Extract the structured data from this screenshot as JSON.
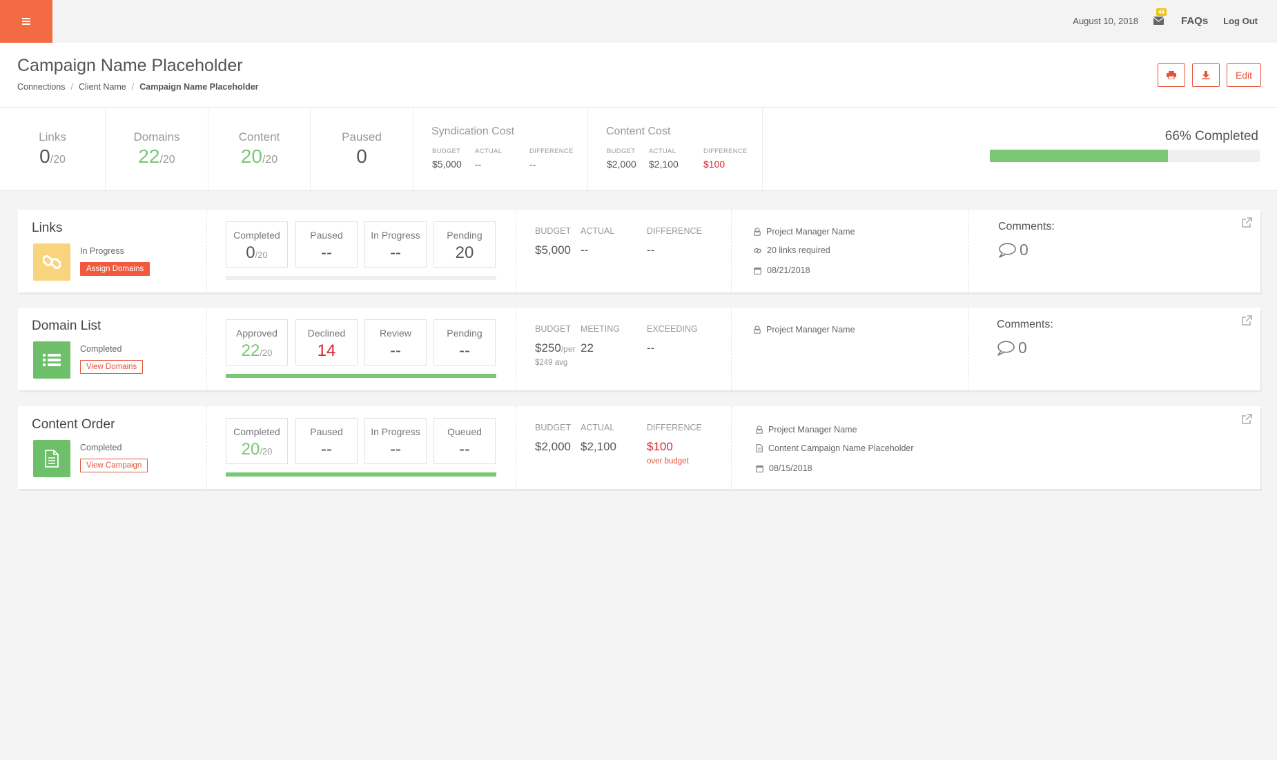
{
  "topbar": {
    "date": "August 10, 2018",
    "mail_badge": "44",
    "faqs_label": "FAQs",
    "logout_label": "Log Out",
    "accent": "#f26b43"
  },
  "header": {
    "title": "Campaign Name Placeholder",
    "breadcrumb": [
      "Connections",
      "Client Name",
      "Campaign Name Placeholder"
    ],
    "edit_label": "Edit",
    "print_icon": "print-icon",
    "download_icon": "download-icon"
  },
  "stats": {
    "links": {
      "label": "Links",
      "value": "0",
      "denom": "/20"
    },
    "domains": {
      "label": "Domains",
      "value": "22",
      "denom": "/20"
    },
    "content": {
      "label": "Content",
      "value": "20",
      "denom": "/20"
    },
    "paused": {
      "label": "Paused",
      "value": "0"
    },
    "syndication": {
      "title": "Syndication Cost",
      "cols": [
        {
          "label": "BUDGET",
          "value": "$5,000"
        },
        {
          "label": "ACTUAL",
          "value": "--"
        },
        {
          "label": "DIFFERENCE",
          "value": "--"
        }
      ]
    },
    "content_cost": {
      "title": "Content Cost",
      "cols": [
        {
          "label": "BUDGET",
          "value": "$2,000"
        },
        {
          "label": "ACTUAL",
          "value": "$2,100"
        },
        {
          "label": "DIFFERENCE",
          "value": "$100"
        }
      ]
    },
    "completion": {
      "label": "66% Completed",
      "percent": 66
    }
  },
  "cards": [
    {
      "name": "Links",
      "icon": "link-icon",
      "icon_color": "#f9d47e",
      "status": "In Progress",
      "action": "Assign Domains",
      "boxes": [
        {
          "label": "Completed",
          "value": "0",
          "denom": "/20"
        },
        {
          "label": "Paused",
          "value": "--"
        },
        {
          "label": "In Progress",
          "value": "--"
        },
        {
          "label": "Pending",
          "value": "20"
        }
      ],
      "progress": 0,
      "fin": [
        {
          "label": "BUDGET",
          "value": "$5,000"
        },
        {
          "label": "ACTUAL",
          "value": "--"
        },
        {
          "label": "DIFFERENCE",
          "value": "--"
        }
      ],
      "meta": [
        "Project Manager Name",
        "20 links required",
        "08/21/2018"
      ],
      "comments_label": "Comments:",
      "comments_count": "0"
    },
    {
      "name": "Domain List",
      "icon": "list-icon",
      "icon_color": "#6dbf69",
      "status": "Completed",
      "action": "View Domains",
      "boxes": [
        {
          "label": "Approved",
          "value": "22",
          "denom": "/20"
        },
        {
          "label": "Declined",
          "value": "14"
        },
        {
          "label": "Review",
          "value": "--"
        },
        {
          "label": "Pending",
          "value": "--"
        }
      ],
      "progress": 100,
      "fin": [
        {
          "label": "BUDGET",
          "value": "$250",
          "unit": "/per",
          "sub": "$249 avg"
        },
        {
          "label": "MEETING",
          "value": "22"
        },
        {
          "label": "EXCEEDING",
          "value": "--"
        }
      ],
      "meta": [
        "Project Manager Name"
      ],
      "comments_label": "Comments:",
      "comments_count": "0"
    },
    {
      "name": "Content Order",
      "icon": "document-icon",
      "icon_color": "#6dbf69",
      "status": "Completed",
      "action": "View Campaign",
      "boxes": [
        {
          "label": "Completed",
          "value": "20",
          "denom": "/20"
        },
        {
          "label": "Paused",
          "value": "--"
        },
        {
          "label": "In Progress",
          "value": "--"
        },
        {
          "label": "Queued",
          "value": "--"
        }
      ],
      "progress": 100,
      "fin": [
        {
          "label": "BUDGET",
          "value": "$2,000"
        },
        {
          "label": "ACTUAL",
          "value": "$2,100"
        },
        {
          "label": "DIFFERENCE",
          "value": "$100",
          "sub": "over budget"
        }
      ],
      "meta": [
        "Project Manager Name",
        "Content Campaign Name Placeholder",
        "08/15/2018"
      ]
    }
  ]
}
